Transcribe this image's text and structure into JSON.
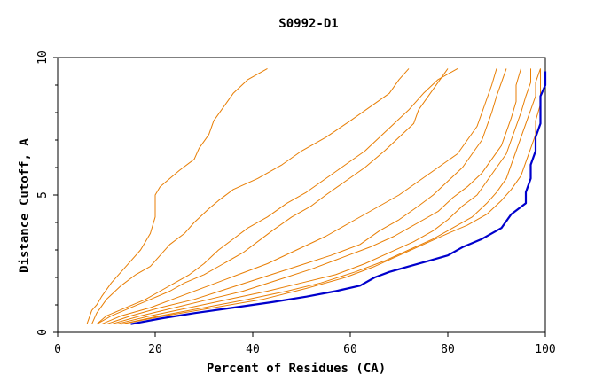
{
  "chart_data": {
    "type": "line",
    "title": "S0992-D1",
    "xlabel": "Percent of Residues (CA)",
    "ylabel": "Distance Cutoff, A",
    "xlim": [
      0,
      100
    ],
    "ylim": [
      0,
      10
    ],
    "x_ticks": [
      "0",
      "20",
      "40",
      "60",
      "80",
      "100"
    ],
    "y_ticks": [
      "0",
      "5",
      "10"
    ],
    "grid": false,
    "series": [
      {
        "color": "#e87e04",
        "highlight": false,
        "points": [
          [
            6,
            0.3
          ],
          [
            7,
            0.8
          ],
          [
            8,
            1.0
          ],
          [
            9,
            1.3
          ],
          [
            11,
            1.8
          ],
          [
            13,
            2.2
          ],
          [
            15,
            2.6
          ],
          [
            17,
            3.0
          ],
          [
            18,
            3.3
          ],
          [
            19,
            3.6
          ],
          [
            20,
            4.2
          ],
          [
            20,
            5.0
          ],
          [
            21,
            5.3
          ],
          [
            23,
            5.6
          ],
          [
            25,
            5.9
          ],
          [
            28,
            6.3
          ],
          [
            29,
            6.7
          ],
          [
            31,
            7.2
          ],
          [
            32,
            7.7
          ],
          [
            34,
            8.2
          ],
          [
            36,
            8.7
          ],
          [
            39,
            9.2
          ],
          [
            43,
            9.6
          ]
        ]
      },
      {
        "color": "#e87e04",
        "highlight": false,
        "points": [
          [
            7,
            0.3
          ],
          [
            8,
            0.7
          ],
          [
            10,
            1.2
          ],
          [
            13,
            1.7
          ],
          [
            16,
            2.1
          ],
          [
            19,
            2.4
          ],
          [
            21,
            2.8
          ],
          [
            23,
            3.2
          ],
          [
            26,
            3.6
          ],
          [
            28,
            4.0
          ],
          [
            31,
            4.5
          ],
          [
            33,
            4.8
          ],
          [
            36,
            5.2
          ],
          [
            41,
            5.6
          ],
          [
            46,
            6.1
          ],
          [
            50,
            6.6
          ],
          [
            55,
            7.1
          ],
          [
            60,
            7.7
          ],
          [
            64,
            8.2
          ],
          [
            68,
            8.7
          ],
          [
            70,
            9.2
          ],
          [
            72,
            9.6
          ]
        ]
      },
      {
        "color": "#e87e04",
        "highlight": false,
        "points": [
          [
            8,
            0.3
          ],
          [
            10,
            0.6
          ],
          [
            14,
            0.9
          ],
          [
            18,
            1.2
          ],
          [
            21,
            1.5
          ],
          [
            24,
            1.8
          ],
          [
            27,
            2.1
          ],
          [
            30,
            2.5
          ],
          [
            33,
            3.0
          ],
          [
            36,
            3.4
          ],
          [
            39,
            3.8
          ],
          [
            43,
            4.2
          ],
          [
            47,
            4.7
          ],
          [
            51,
            5.1
          ],
          [
            55,
            5.6
          ],
          [
            59,
            6.1
          ],
          [
            63,
            6.6
          ],
          [
            66,
            7.1
          ],
          [
            69,
            7.6
          ],
          [
            72,
            8.1
          ],
          [
            75,
            8.7
          ],
          [
            78,
            9.2
          ],
          [
            82,
            9.6
          ]
        ]
      },
      {
        "color": "#e87e04",
        "highlight": false,
        "points": [
          [
            8,
            0.3
          ],
          [
            11,
            0.6
          ],
          [
            15,
            0.9
          ],
          [
            19,
            1.2
          ],
          [
            23,
            1.5
          ],
          [
            26,
            1.8
          ],
          [
            30,
            2.1
          ],
          [
            34,
            2.5
          ],
          [
            38,
            2.9
          ],
          [
            41,
            3.3
          ],
          [
            44,
            3.7
          ],
          [
            48,
            4.2
          ],
          [
            52,
            4.6
          ],
          [
            55,
            5.0
          ],
          [
            59,
            5.5
          ],
          [
            63,
            6.0
          ],
          [
            67,
            6.6
          ],
          [
            70,
            7.1
          ],
          [
            73,
            7.6
          ],
          [
            74,
            8.1
          ],
          [
            76,
            8.6
          ],
          [
            78,
            9.1
          ],
          [
            80,
            9.6
          ]
        ]
      },
      {
        "color": "#e87e04",
        "highlight": false,
        "points": [
          [
            9,
            0.3
          ],
          [
            13,
            0.6
          ],
          [
            19,
            0.9
          ],
          [
            25,
            1.3
          ],
          [
            31,
            1.7
          ],
          [
            37,
            2.1
          ],
          [
            43,
            2.5
          ],
          [
            49,
            3.0
          ],
          [
            55,
            3.5
          ],
          [
            60,
            4.0
          ],
          [
            65,
            4.5
          ],
          [
            70,
            5.0
          ],
          [
            74,
            5.5
          ],
          [
            78,
            6.0
          ],
          [
            82,
            6.5
          ],
          [
            84,
            7.0
          ],
          [
            86,
            7.5
          ],
          [
            87,
            8.0
          ],
          [
            88,
            8.5
          ],
          [
            89,
            9.0
          ],
          [
            90,
            9.6
          ]
        ]
      },
      {
        "color": "#e87e04",
        "highlight": false,
        "points": [
          [
            10,
            0.3
          ],
          [
            15,
            0.6
          ],
          [
            21,
            0.9
          ],
          [
            28,
            1.2
          ],
          [
            35,
            1.6
          ],
          [
            42,
            2.0
          ],
          [
            49,
            2.4
          ],
          [
            56,
            2.8
          ],
          [
            62,
            3.2
          ],
          [
            66,
            3.7
          ],
          [
            70,
            4.1
          ],
          [
            74,
            4.6
          ],
          [
            77,
            5.0
          ],
          [
            80,
            5.5
          ],
          [
            83,
            6.0
          ],
          [
            85,
            6.5
          ],
          [
            87,
            7.0
          ],
          [
            88,
            7.5
          ],
          [
            89,
            8.0
          ],
          [
            90,
            8.6
          ],
          [
            91,
            9.1
          ],
          [
            92,
            9.6
          ]
        ]
      },
      {
        "color": "#e87e04",
        "highlight": false,
        "points": [
          [
            11,
            0.3
          ],
          [
            17,
            0.6
          ],
          [
            24,
            0.9
          ],
          [
            31,
            1.2
          ],
          [
            38,
            1.5
          ],
          [
            45,
            1.9
          ],
          [
            52,
            2.3
          ],
          [
            58,
            2.7
          ],
          [
            64,
            3.1
          ],
          [
            69,
            3.5
          ],
          [
            74,
            4.0
          ],
          [
            78,
            4.4
          ],
          [
            81,
            4.9
          ],
          [
            84,
            5.3
          ],
          [
            87,
            5.8
          ],
          [
            89,
            6.3
          ],
          [
            91,
            6.8
          ],
          [
            92,
            7.3
          ],
          [
            93,
            7.8
          ],
          [
            94,
            8.4
          ],
          [
            94,
            9.0
          ],
          [
            95,
            9.6
          ]
        ]
      },
      {
        "color": "#e87e04",
        "highlight": false,
        "points": [
          [
            12,
            0.3
          ],
          [
            19,
            0.6
          ],
          [
            27,
            0.9
          ],
          [
            35,
            1.2
          ],
          [
            43,
            1.5
          ],
          [
            50,
            1.8
          ],
          [
            57,
            2.1
          ],
          [
            63,
            2.5
          ],
          [
            68,
            2.9
          ],
          [
            73,
            3.3
          ],
          [
            77,
            3.7
          ],
          [
            80,
            4.1
          ],
          [
            83,
            4.6
          ],
          [
            86,
            5.0
          ],
          [
            88,
            5.5
          ],
          [
            90,
            6.0
          ],
          [
            92,
            6.5
          ],
          [
            93,
            7.0
          ],
          [
            94,
            7.5
          ],
          [
            95,
            8.0
          ],
          [
            96,
            8.6
          ],
          [
            97,
            9.1
          ],
          [
            97,
            9.6
          ]
        ]
      },
      {
        "color": "#e87e04",
        "highlight": false,
        "points": [
          [
            13,
            0.3
          ],
          [
            21,
            0.6
          ],
          [
            30,
            0.9
          ],
          [
            39,
            1.2
          ],
          [
            47,
            1.5
          ],
          [
            54,
            1.8
          ],
          [
            61,
            2.2
          ],
          [
            67,
            2.6
          ],
          [
            72,
            3.0
          ],
          [
            77,
            3.4
          ],
          [
            81,
            3.8
          ],
          [
            85,
            4.2
          ],
          [
            88,
            4.7
          ],
          [
            90,
            5.1
          ],
          [
            92,
            5.6
          ],
          [
            93,
            6.1
          ],
          [
            94,
            6.6
          ],
          [
            95,
            7.1
          ],
          [
            96,
            7.6
          ],
          [
            97,
            8.1
          ],
          [
            98,
            8.6
          ],
          [
            98,
            9.1
          ],
          [
            99,
            9.6
          ]
        ]
      },
      {
        "color": "#e87e04",
        "highlight": false,
        "points": [
          [
            13,
            0.3
          ],
          [
            22,
            0.6
          ],
          [
            32,
            0.9
          ],
          [
            42,
            1.2
          ],
          [
            51,
            1.6
          ],
          [
            59,
            2.0
          ],
          [
            65,
            2.4
          ],
          [
            70,
            2.8
          ],
          [
            75,
            3.2
          ],
          [
            80,
            3.6
          ],
          [
            84,
            3.9
          ],
          [
            88,
            4.3
          ],
          [
            91,
            4.8
          ],
          [
            93,
            5.2
          ],
          [
            95,
            5.7
          ],
          [
            96,
            6.2
          ],
          [
            97,
            6.7
          ],
          [
            98,
            7.2
          ],
          [
            98,
            7.7
          ],
          [
            99,
            8.3
          ],
          [
            99,
            8.9
          ],
          [
            99,
            9.6
          ]
        ]
      },
      {
        "color": "#0000cc",
        "highlight": true,
        "points": [
          [
            15,
            0.3
          ],
          [
            21,
            0.5
          ],
          [
            28,
            0.7
          ],
          [
            36,
            0.9
          ],
          [
            44,
            1.1
          ],
          [
            51,
            1.3
          ],
          [
            57,
            1.5
          ],
          [
            62,
            1.7
          ],
          [
            65,
            2.0
          ],
          [
            68,
            2.2
          ],
          [
            72,
            2.4
          ],
          [
            76,
            2.6
          ],
          [
            80,
            2.8
          ],
          [
            83,
            3.1
          ],
          [
            87,
            3.4
          ],
          [
            91,
            3.8
          ],
          [
            93,
            4.3
          ],
          [
            96,
            4.7
          ],
          [
            96,
            5.1
          ],
          [
            97,
            5.6
          ],
          [
            97,
            6.1
          ],
          [
            98,
            6.6
          ],
          [
            98,
            7.1
          ],
          [
            99,
            7.6
          ],
          [
            99,
            8.1
          ],
          [
            99,
            8.6
          ],
          [
            100,
            9.0
          ],
          [
            100,
            9.5
          ]
        ]
      }
    ]
  }
}
